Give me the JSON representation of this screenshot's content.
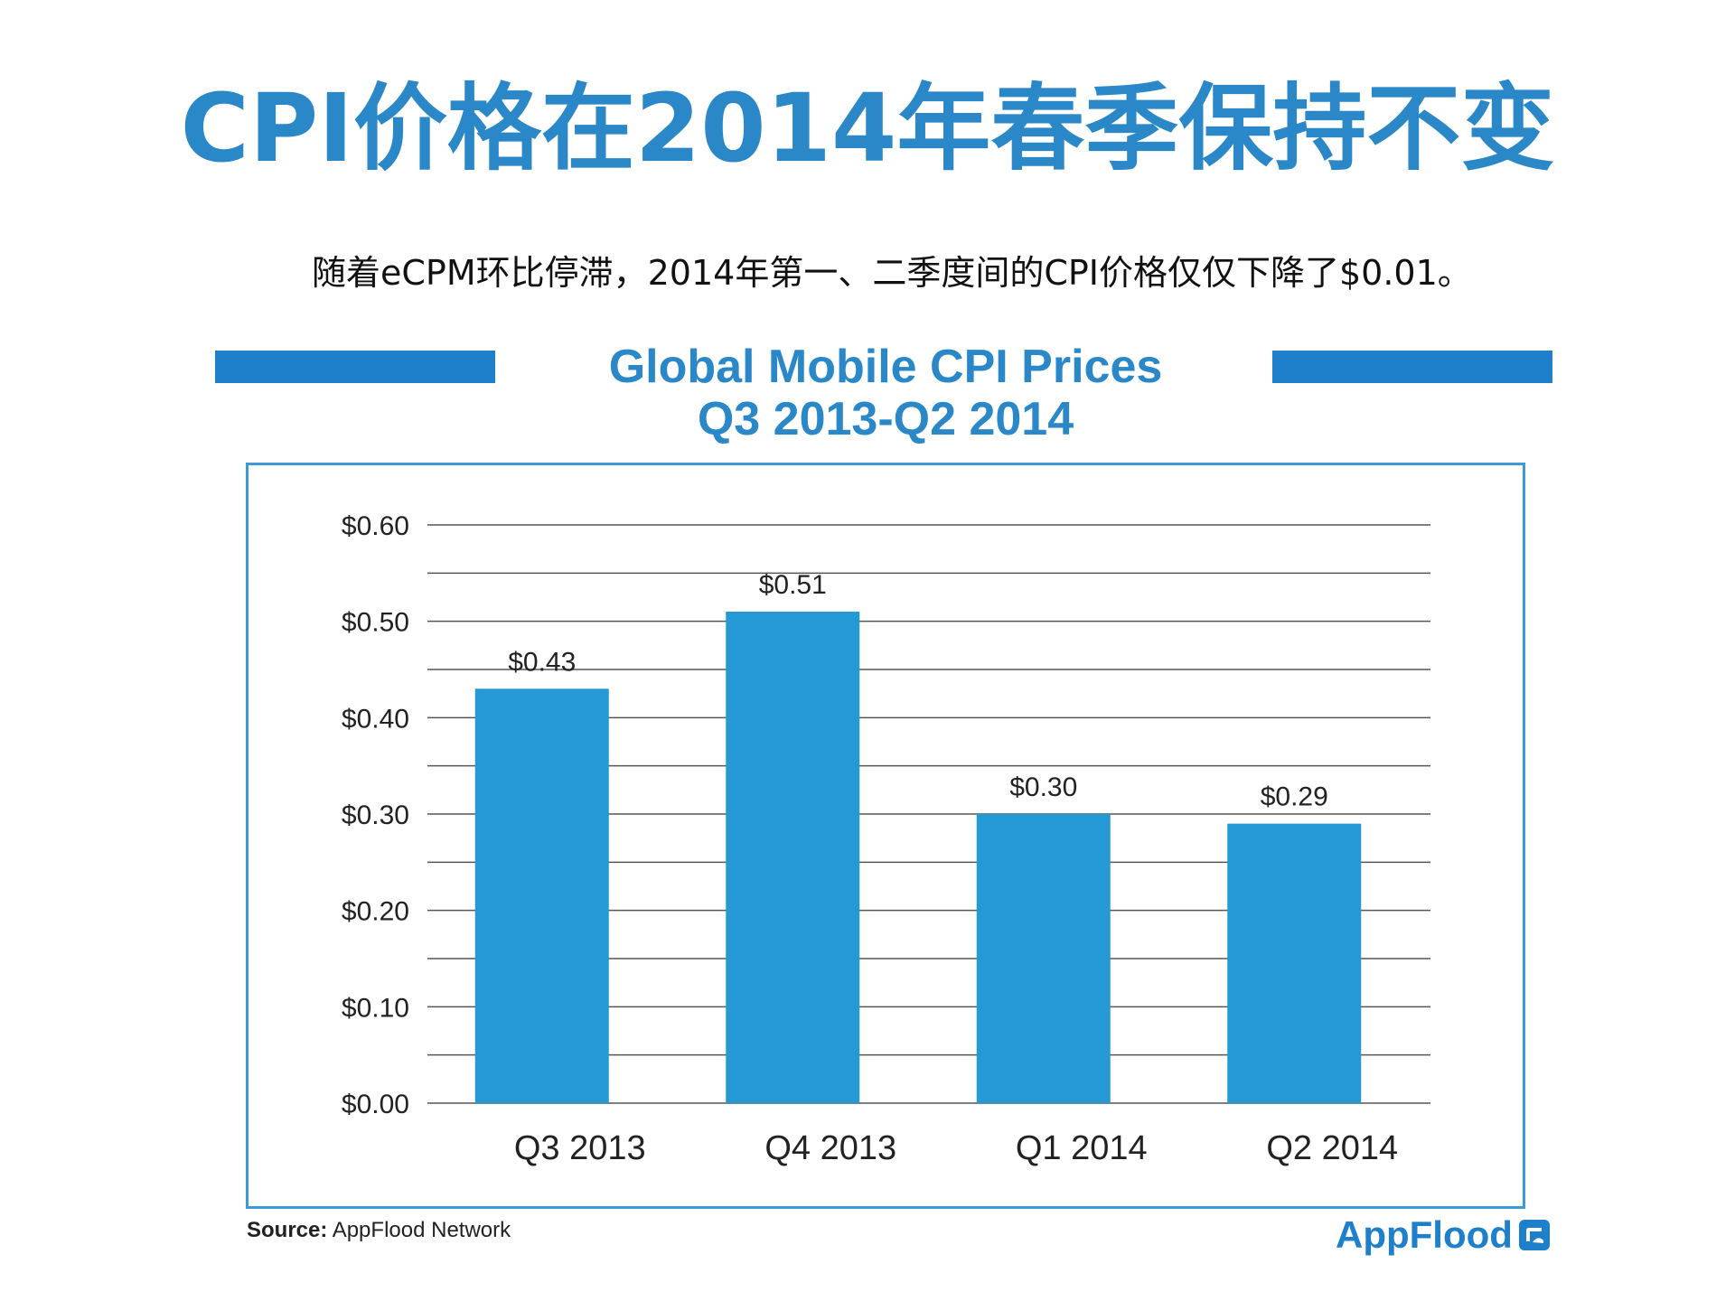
{
  "page": {
    "headline": "CPI价格在2014年春季保持不变",
    "subtitle": "随着eCPM环比停滞，2014年第一、二季度间的CPI价格仅仅下降了$0.01。",
    "source_label": "Source:",
    "source_text": " AppFlood Network",
    "brand": "AppFlood"
  },
  "colors": {
    "accent": "#2a87c8",
    "bar": "#2599d3",
    "deco_bar": "#1e7fcb",
    "frame": "#3c9ad6",
    "gridline": "#555555"
  },
  "chart_data": {
    "type": "bar",
    "title_line1": "Global Mobile CPI Prices",
    "title_line2": "Q3 2013-Q2 2014",
    "categories": [
      "Q3 2013",
      "Q4 2013",
      "Q1 2014",
      "Q2 2014"
    ],
    "values": [
      0.43,
      0.51,
      0.3,
      0.29
    ],
    "data_labels": [
      "$0.43",
      "$0.51",
      "$0.30",
      "$0.29"
    ],
    "y_ticks": [
      0.0,
      0.1,
      0.2,
      0.3,
      0.4,
      0.5,
      0.6
    ],
    "y_tick_labels": [
      "$0.00",
      "$0.10",
      "$0.20",
      "$0.30",
      "$0.40",
      "$0.50",
      "$0.60"
    ],
    "ylim": [
      0,
      0.6
    ],
    "minor_gridlines": true,
    "grid": true,
    "xlabel": "",
    "ylabel": ""
  }
}
